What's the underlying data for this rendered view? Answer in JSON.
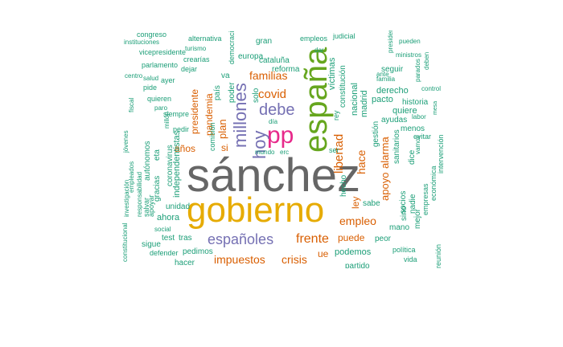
{
  "palette": {
    "teal": "#1b9e77",
    "orange": "#d95f02",
    "purple": "#7570b3",
    "pink": "#e7298a",
    "green": "#66a61e",
    "gold": "#e6ab02",
    "gray": "#666666"
  },
  "words": [
    {
      "text": "sánchez",
      "color": "gray"
    },
    {
      "text": "gobierno",
      "color": "gold"
    },
    {
      "text": "españa",
      "color": "green"
    },
    {
      "text": "pp",
      "color": "pink"
    },
    {
      "text": "millones",
      "color": "purple"
    },
    {
      "text": "hoy",
      "color": "purple"
    },
    {
      "text": "debe",
      "color": "purple"
    },
    {
      "text": "españoles",
      "color": "purple"
    },
    {
      "text": "frente",
      "color": "orange"
    },
    {
      "text": "covid",
      "color": "orange"
    },
    {
      "text": "familias",
      "color": "orange"
    },
    {
      "text": "empleo",
      "color": "orange"
    },
    {
      "text": "impuestos",
      "color": "orange"
    },
    {
      "text": "crisis",
      "color": "orange"
    },
    {
      "text": "libertad",
      "color": "orange"
    },
    {
      "text": "hace",
      "color": "orange"
    },
    {
      "text": "apoyo",
      "color": "orange"
    },
    {
      "text": "alarma",
      "color": "orange"
    },
    {
      "text": "plan",
      "color": "orange"
    },
    {
      "text": "pandemia",
      "color": "orange"
    },
    {
      "text": "presidente",
      "color": "orange"
    },
    {
      "text": "años",
      "color": "orange"
    },
    {
      "text": "si",
      "color": "orange"
    },
    {
      "text": "ley",
      "color": "orange"
    },
    {
      "text": "puede",
      "color": "orange"
    },
    {
      "text": "ue",
      "color": "orange"
    },
    {
      "text": "podemos",
      "color": "teal"
    },
    {
      "text": "víctimas",
      "color": "teal"
    },
    {
      "text": "constitución",
      "color": "teal"
    },
    {
      "text": "nacional",
      "color": "teal"
    },
    {
      "text": "madrid",
      "color": "teal"
    },
    {
      "text": "pacto",
      "color": "teal"
    },
    {
      "text": "historia",
      "color": "teal"
    },
    {
      "text": "quiere",
      "color": "teal"
    },
    {
      "text": "derecho",
      "color": "teal"
    },
    {
      "text": "menos",
      "color": "teal"
    },
    {
      "text": "ayudas",
      "color": "teal"
    },
    {
      "text": "gestión",
      "color": "teal"
    },
    {
      "text": "seguir",
      "color": "teal"
    },
    {
      "text": "reforma",
      "color": "teal"
    },
    {
      "text": "cataluña",
      "color": "teal"
    },
    {
      "text": "europa",
      "color": "teal"
    },
    {
      "text": "gran",
      "color": "teal"
    },
    {
      "text": "empleos",
      "color": "teal"
    },
    {
      "text": "judicial",
      "color": "teal"
    },
    {
      "text": "alternativa",
      "color": "teal"
    },
    {
      "text": "congreso",
      "color": "teal"
    },
    {
      "text": "instituciones",
      "color": "teal"
    },
    {
      "text": "vicepresidente",
      "color": "teal"
    },
    {
      "text": "parlamento",
      "color": "teal"
    },
    {
      "text": "turismo",
      "color": "teal"
    },
    {
      "text": "crearías",
      "color": "teal"
    },
    {
      "text": "dejar",
      "color": "teal"
    },
    {
      "text": "ayer",
      "color": "teal"
    },
    {
      "text": "salud",
      "color": "teal"
    },
    {
      "text": "pide",
      "color": "teal"
    },
    {
      "text": "quieren",
      "color": "teal"
    },
    {
      "text": "siempre",
      "color": "teal"
    },
    {
      "text": "paro",
      "color": "teal"
    },
    {
      "text": "millón",
      "color": "teal"
    },
    {
      "text": "pedir",
      "color": "teal"
    },
    {
      "text": "va",
      "color": "teal"
    },
    {
      "text": "poder",
      "color": "teal"
    },
    {
      "text": "solo",
      "color": "teal"
    },
    {
      "text": "país",
      "color": "teal"
    },
    {
      "text": "democracia",
      "color": "teal"
    },
    {
      "text": "comisión",
      "color": "teal"
    },
    {
      "text": "día",
      "color": "teal"
    },
    {
      "text": "mundo",
      "color": "teal"
    },
    {
      "text": "erc",
      "color": "teal"
    },
    {
      "text": "eta",
      "color": "teal"
    },
    {
      "text": "coronavirus",
      "color": "teal"
    },
    {
      "text": "autónomos",
      "color": "teal"
    },
    {
      "text": "independentistas",
      "color": "teal"
    },
    {
      "text": "gracias",
      "color": "teal"
    },
    {
      "text": "unidad",
      "color": "teal"
    },
    {
      "text": "ahora",
      "color": "teal"
    },
    {
      "text": "social",
      "color": "teal"
    },
    {
      "text": "test",
      "color": "teal"
    },
    {
      "text": "tras",
      "color": "teal"
    },
    {
      "text": "sigue",
      "color": "teal"
    },
    {
      "text": "defender",
      "color": "teal"
    },
    {
      "text": "pedimos",
      "color": "teal"
    },
    {
      "text": "hacer",
      "color": "teal"
    },
    {
      "text": "partido",
      "color": "teal"
    },
    {
      "text": "socios",
      "color": "teal"
    },
    {
      "text": "sanitarios",
      "color": "teal"
    },
    {
      "text": "dice",
      "color": "teal"
    },
    {
      "text": "sino",
      "color": "teal"
    },
    {
      "text": "nadie",
      "color": "teal"
    },
    {
      "text": "mejor",
      "color": "teal"
    },
    {
      "text": "empresas",
      "color": "teal"
    },
    {
      "text": "económica",
      "color": "teal"
    },
    {
      "text": "intervención",
      "color": "teal"
    },
    {
      "text": "evitar",
      "color": "teal"
    },
    {
      "text": "vamos",
      "color": "teal"
    },
    {
      "text": "labor",
      "color": "teal"
    },
    {
      "text": "mesa",
      "color": "teal"
    },
    {
      "text": "control",
      "color": "teal"
    },
    {
      "text": "mano",
      "color": "teal"
    },
    {
      "text": "peor",
      "color": "teal"
    },
    {
      "text": "política",
      "color": "teal"
    },
    {
      "text": "vida",
      "color": "teal"
    },
    {
      "text": "reunión",
      "color": "teal"
    },
    {
      "text": "empleados",
      "color": "teal"
    },
    {
      "text": "responsabilidad",
      "color": "teal"
    },
    {
      "text": "constitucional",
      "color": "teal"
    },
    {
      "text": "investigación",
      "color": "teal"
    },
    {
      "text": "salvar",
      "color": "teal"
    },
    {
      "text": "apoyar",
      "color": "teal"
    },
    {
      "text": "centro",
      "color": "teal"
    },
    {
      "text": "fiscal",
      "color": "teal"
    },
    {
      "text": "jóvenes",
      "color": "teal"
    },
    {
      "text": "hecho",
      "color": "teal"
    },
    {
      "text": "sabe",
      "color": "teal"
    },
    {
      "text": "ser",
      "color": "teal"
    },
    {
      "text": "rey",
      "color": "teal"
    },
    {
      "text": "dar",
      "color": "teal"
    },
    {
      "text": "ante",
      "color": "teal"
    },
    {
      "text": "familia",
      "color": "teal"
    },
    {
      "text": "parados",
      "color": "teal"
    },
    {
      "text": "ministros",
      "color": "teal"
    },
    {
      "text": "deben",
      "color": "teal"
    },
    {
      "text": "pueden",
      "color": "teal"
    },
    {
      "text": "presidentes",
      "color": "teal"
    },
    {
      "text": "vasco",
      "color": "teal"
    },
    {
      "text": "españoles",
      "color": "teal"
    }
  ]
}
